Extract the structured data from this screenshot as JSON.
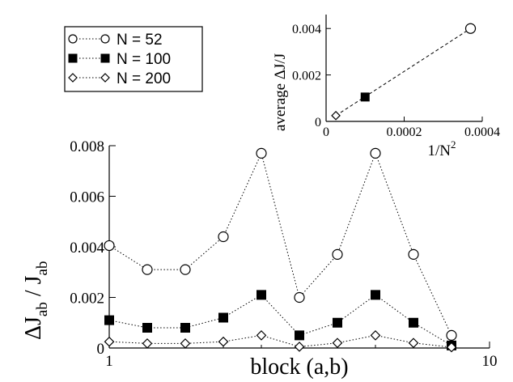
{
  "chart_data": [
    {
      "type": "line",
      "xlabel": "block (a,b)",
      "ylabel": "ΔJ_ab / J_ab",
      "xlim": [
        1,
        10
      ],
      "ylim": [
        0,
        0.008
      ],
      "x_ticks": [
        "1",
        "10"
      ],
      "y_ticks": [
        "0",
        "0.002",
        "0.004",
        "0.006",
        "0.008"
      ],
      "grid": false,
      "legend_position": "top-left",
      "x": [
        1,
        1.5,
        2,
        2.5,
        3,
        3.5,
        4,
        4.5,
        5,
        5.5,
        6
      ],
      "series": [
        {
          "name": "N = 52",
          "marker": "open-circle",
          "values": [
            0.00405,
            0.0031,
            0.0031,
            0.0044,
            0.0077,
            0.002,
            0.0037,
            0.0077,
            0.0037,
            0.0005,
            null
          ]
        },
        {
          "name": "N = 100",
          "marker": "filled-square",
          "values": [
            0.0011,
            0.0008,
            0.0008,
            0.0012,
            0.0021,
            0.0005,
            0.001,
            0.0021,
            0.001,
            0.0001,
            null
          ]
        },
        {
          "name": "N = 200",
          "marker": "open-diamond",
          "values": [
            0.00025,
            0.00018,
            0.00018,
            0.00025,
            0.0005,
            5e-05,
            0.0002,
            0.0005,
            0.0002,
            3e-05,
            null
          ]
        }
      ]
    },
    {
      "type": "line",
      "xlabel": "1/N²",
      "ylabel": "average ΔJ/J",
      "xlim": [
        0,
        0.0004
      ],
      "ylim": [
        0,
        0.0046
      ],
      "x_ticks": [
        "0",
        "0.0002",
        "0.0004"
      ],
      "y_ticks": [
        "0",
        "0.002",
        "0.004"
      ],
      "grid": false,
      "points": [
        {
          "series": "N = 200",
          "marker": "open-diamond",
          "x": 2.5e-05,
          "y": 0.00025
        },
        {
          "series": "N = 100",
          "marker": "filled-square",
          "x": 0.0001,
          "y": 0.00105
        },
        {
          "series": "N = 52",
          "marker": "open-circle",
          "x": 0.00037,
          "y": 0.004
        }
      ],
      "fit_line": {
        "style": "dashed",
        "from": [
          2.5e-05,
          0.00025
        ],
        "to": [
          0.00037,
          0.004
        ]
      }
    }
  ],
  "legend": {
    "entries": [
      "N = 52",
      "N = 100",
      "N = 200"
    ]
  },
  "main": {
    "ylabel_main": "ΔJ",
    "ylabel_sub1": "ab",
    "ylabel_sep": " / J",
    "ylabel_sub2": "ab",
    "xlabel": "block (a,b)"
  },
  "inset": {
    "ylabel": "average ΔJ/J",
    "xlabel_base": "1/N",
    "xlabel_sup": "2"
  }
}
